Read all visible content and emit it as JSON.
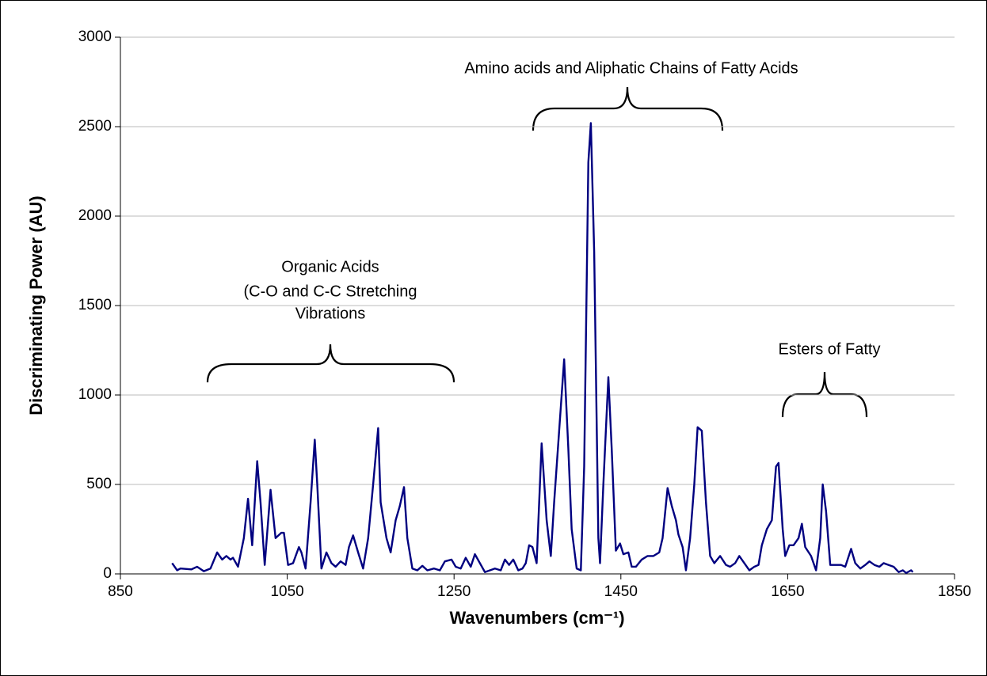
{
  "chart_data": {
    "type": "line",
    "ylabel": "Discriminating Power (AU)",
    "xlabel": "Wavenumbers (cm⁻¹)",
    "xlim": [
      850,
      1850
    ],
    "xticks": [
      850,
      1050,
      1250,
      1450,
      1650,
      1850
    ],
    "ylim": [
      0,
      3000
    ],
    "yticks": [
      0,
      500,
      1000,
      1500,
      2000,
      2500,
      3000
    ],
    "grid": true,
    "color": "#000080",
    "annotations": [
      {
        "lines": [
          "Amino acids and Aliphatic Chains of Fatty Acids"
        ]
      },
      {
        "lines": [
          "Organic Acids",
          "(C-O and C-C Stretching",
          "Vibrations"
        ]
      },
      {
        "lines": [
          "Esters of Fatty"
        ]
      }
    ],
    "x": [
      912,
      918,
      922,
      935,
      942,
      950,
      958,
      966,
      972,
      977,
      982,
      985,
      991,
      998,
      1003,
      1008,
      1014,
      1018,
      1023,
      1030,
      1036,
      1043,
      1046,
      1051,
      1057,
      1064,
      1067,
      1072,
      1078,
      1083,
      1086,
      1091,
      1097,
      1103,
      1108,
      1114,
      1120,
      1124,
      1129,
      1135,
      1141,
      1147,
      1153,
      1159,
      1162,
      1169,
      1174,
      1180,
      1185,
      1190,
      1194,
      1200,
      1206,
      1212,
      1218,
      1226,
      1233,
      1239,
      1247,
      1252,
      1258,
      1264,
      1270,
      1275,
      1281,
      1287,
      1293,
      1299,
      1306,
      1311,
      1316,
      1321,
      1327,
      1332,
      1336,
      1340,
      1344,
      1349,
      1355,
      1361,
      1366,
      1370,
      1376,
      1382,
      1387,
      1391,
      1397,
      1402,
      1406,
      1411,
      1414,
      1418,
      1423,
      1425,
      1429,
      1435,
      1439,
      1444,
      1449,
      1453,
      1459,
      1463,
      1468,
      1475,
      1482,
      1489,
      1496,
      1500,
      1506,
      1511,
      1516,
      1519,
      1524,
      1528,
      1533,
      1538,
      1542,
      1547,
      1552,
      1557,
      1562,
      1569,
      1576,
      1581,
      1587,
      1592,
      1598,
      1604,
      1610,
      1615,
      1619,
      1625,
      1631,
      1636,
      1639,
      1644,
      1647,
      1652,
      1657,
      1663,
      1667,
      1671,
      1678,
      1684,
      1689,
      1692,
      1696,
      1701,
      1708,
      1714,
      1719,
      1726,
      1731,
      1737,
      1743,
      1748,
      1754,
      1760,
      1765,
      1771,
      1777,
      1783,
      1788,
      1792,
      1798,
      1800
    ],
    "values": [
      60,
      20,
      30,
      25,
      40,
      15,
      30,
      120,
      80,
      100,
      80,
      90,
      40,
      200,
      420,
      160,
      630,
      400,
      50,
      470,
      200,
      230,
      230,
      50,
      60,
      150,
      120,
      30,
      400,
      750,
      500,
      30,
      120,
      60,
      40,
      70,
      50,
      150,
      215,
      120,
      30,
      200,
      500,
      815,
      400,
      200,
      120,
      300,
      380,
      485,
      200,
      30,
      20,
      45,
      20,
      30,
      20,
      70,
      80,
      40,
      30,
      90,
      40,
      110,
      60,
      10,
      20,
      30,
      20,
      80,
      50,
      80,
      20,
      30,
      60,
      160,
      150,
      60,
      730,
      300,
      100,
      400,
      800,
      1200,
      700,
      250,
      30,
      20,
      600,
      2300,
      2520,
      1800,
      200,
      60,
      500,
      1100,
      700,
      130,
      170,
      110,
      120,
      40,
      40,
      80,
      100,
      100,
      120,
      200,
      480,
      380,
      300,
      220,
      150,
      20,
      200,
      500,
      820,
      800,
      400,
      100,
      60,
      100,
      50,
      40,
      60,
      100,
      60,
      20,
      40,
      50,
      160,
      250,
      300,
      600,
      620,
      250,
      100,
      160,
      160,
      200,
      280,
      150,
      100,
      20,
      200,
      500,
      350,
      50,
      50,
      50,
      40,
      140,
      60,
      30,
      50,
      70,
      50,
      40,
      60,
      50,
      40,
      10,
      20,
      5,
      20,
      10
    ]
  }
}
